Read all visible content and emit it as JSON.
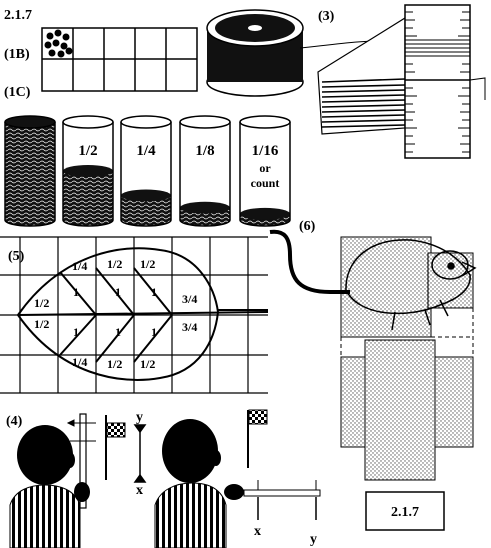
{
  "figure_id": "2.1.7",
  "panel_labels": {
    "p1b": "(1B)",
    "p1c": "(1C)",
    "p3": "(3)",
    "p4": "(4)",
    "p5": "(5)",
    "p6": "(6)"
  },
  "jars": [
    "",
    "1/2",
    "1/4",
    "1/8",
    "1/16"
  ],
  "jar_extra": [
    "or",
    "count"
  ],
  "jar_fill_fraction": [
    1,
    0.5,
    0.25,
    0.125,
    0.0625
  ],
  "leaf_cells": {
    "top": [
      "1/4",
      "1/2",
      "1/2"
    ],
    "mid1": [
      "1",
      "1",
      "1"
    ],
    "mid2": [
      "1",
      "1",
      "1"
    ],
    "bottom": [
      "1/4",
      "1/2",
      "1/2"
    ],
    "left": [
      "1/2",
      "1/2"
    ],
    "right": [
      "3/4",
      "3/4"
    ]
  },
  "axis_marks": {
    "x": "x",
    "y": "y"
  },
  "caption_box": "2.1.7",
  "colors": {
    "ink": "#000000",
    "paper": "#ffffff",
    "stipple": "#bdbdbd"
  }
}
